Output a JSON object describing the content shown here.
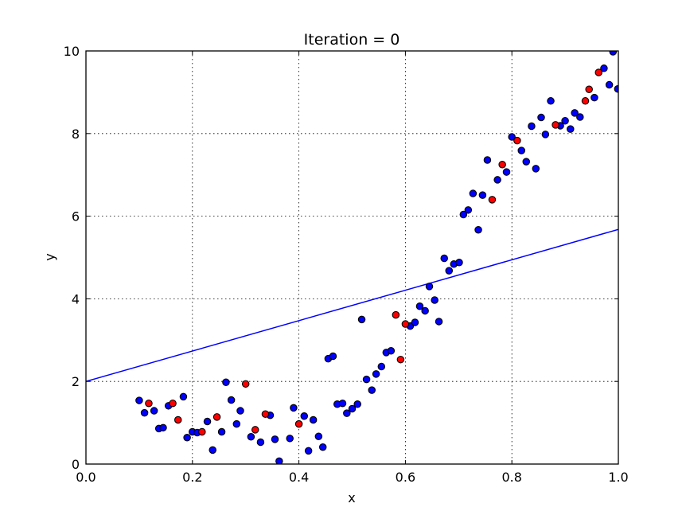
{
  "chart_data": {
    "type": "scatter",
    "title": "Iteration = 0",
    "xlabel": "x",
    "ylabel": "y",
    "xlim": [
      0.0,
      1.0
    ],
    "ylim": [
      0,
      10
    ],
    "xticks": [
      "0.0",
      "0.2",
      "0.4",
      "0.6",
      "0.8",
      "1.0"
    ],
    "yticks": [
      "0",
      "2",
      "4",
      "6",
      "8",
      "10"
    ],
    "grid": true,
    "legend": null,
    "colors": {
      "blue": "#0000ff",
      "red": "#ff0000",
      "edge": "#000000",
      "line": "#0000ff"
    },
    "series": [
      {
        "name": "blue points",
        "color": "#0000ff",
        "points": [
          [
            0.1,
            1.54
          ],
          [
            0.11,
            1.24
          ],
          [
            0.128,
            1.29
          ],
          [
            0.137,
            0.86
          ],
          [
            0.145,
            0.88
          ],
          [
            0.155,
            1.41
          ],
          [
            0.183,
            1.63
          ],
          [
            0.19,
            0.64
          ],
          [
            0.2,
            0.78
          ],
          [
            0.209,
            0.76
          ],
          [
            0.228,
            1.03
          ],
          [
            0.238,
            0.34
          ],
          [
            0.255,
            0.78
          ],
          [
            0.263,
            1.98
          ],
          [
            0.273,
            1.55
          ],
          [
            0.283,
            0.97
          ],
          [
            0.29,
            1.29
          ],
          [
            0.31,
            0.66
          ],
          [
            0.328,
            0.53
          ],
          [
            0.346,
            1.18
          ],
          [
            0.355,
            0.6
          ],
          [
            0.363,
            0.07
          ],
          [
            0.383,
            0.62
          ],
          [
            0.39,
            1.36
          ],
          [
            0.41,
            1.16
          ],
          [
            0.418,
            0.32
          ],
          [
            0.427,
            1.07
          ],
          [
            0.437,
            0.67
          ],
          [
            0.445,
            0.41
          ],
          [
            0.455,
            2.55
          ],
          [
            0.464,
            2.61
          ],
          [
            0.472,
            1.45
          ],
          [
            0.482,
            1.47
          ],
          [
            0.49,
            1.23
          ],
          [
            0.5,
            1.34
          ],
          [
            0.51,
            1.45
          ],
          [
            0.518,
            3.5
          ],
          [
            0.527,
            2.05
          ],
          [
            0.537,
            1.79
          ],
          [
            0.545,
            2.18
          ],
          [
            0.555,
            2.36
          ],
          [
            0.564,
            2.7
          ],
          [
            0.573,
            2.74
          ],
          [
            0.609,
            3.34
          ],
          [
            0.618,
            3.43
          ],
          [
            0.627,
            3.82
          ],
          [
            0.637,
            3.71
          ],
          [
            0.645,
            4.3
          ],
          [
            0.655,
            3.97
          ],
          [
            0.663,
            3.45
          ],
          [
            0.673,
            4.98
          ],
          [
            0.682,
            4.68
          ],
          [
            0.691,
            4.84
          ],
          [
            0.701,
            4.88
          ],
          [
            0.709,
            6.04
          ],
          [
            0.718,
            6.15
          ],
          [
            0.727,
            6.55
          ],
          [
            0.737,
            5.67
          ],
          [
            0.745,
            6.51
          ],
          [
            0.754,
            7.36
          ],
          [
            0.773,
            6.88
          ],
          [
            0.79,
            7.07
          ],
          [
            0.8,
            7.92
          ],
          [
            0.818,
            7.59
          ],
          [
            0.827,
            7.32
          ],
          [
            0.837,
            8.18
          ],
          [
            0.845,
            7.15
          ],
          [
            0.855,
            8.39
          ],
          [
            0.863,
            7.98
          ],
          [
            0.873,
            8.79
          ],
          [
            0.891,
            8.19
          ],
          [
            0.9,
            8.31
          ],
          [
            0.91,
            8.11
          ],
          [
            0.918,
            8.5
          ],
          [
            0.928,
            8.4
          ],
          [
            0.955,
            8.87
          ],
          [
            0.973,
            9.58
          ],
          [
            0.983,
            9.18
          ],
          [
            0.99,
            9.98
          ],
          [
            0.999,
            9.08
          ]
        ]
      },
      {
        "name": "red points",
        "color": "#ff0000",
        "points": [
          [
            0.118,
            1.47
          ],
          [
            0.163,
            1.47
          ],
          [
            0.173,
            1.07
          ],
          [
            0.218,
            0.78
          ],
          [
            0.246,
            1.14
          ],
          [
            0.3,
            1.94
          ],
          [
            0.318,
            0.83
          ],
          [
            0.337,
            1.21
          ],
          [
            0.4,
            0.97
          ],
          [
            0.582,
            3.61
          ],
          [
            0.591,
            2.53
          ],
          [
            0.6,
            3.39
          ],
          [
            0.763,
            6.4
          ],
          [
            0.782,
            7.25
          ],
          [
            0.81,
            7.83
          ],
          [
            0.882,
            8.21
          ],
          [
            0.938,
            8.79
          ],
          [
            0.945,
            9.07
          ],
          [
            0.963,
            9.48
          ]
        ]
      },
      {
        "name": "fit line",
        "type": "line",
        "color": "#0000ff",
        "x": [
          0.0,
          1.0
        ],
        "y": [
          2.0,
          5.68
        ]
      }
    ]
  }
}
